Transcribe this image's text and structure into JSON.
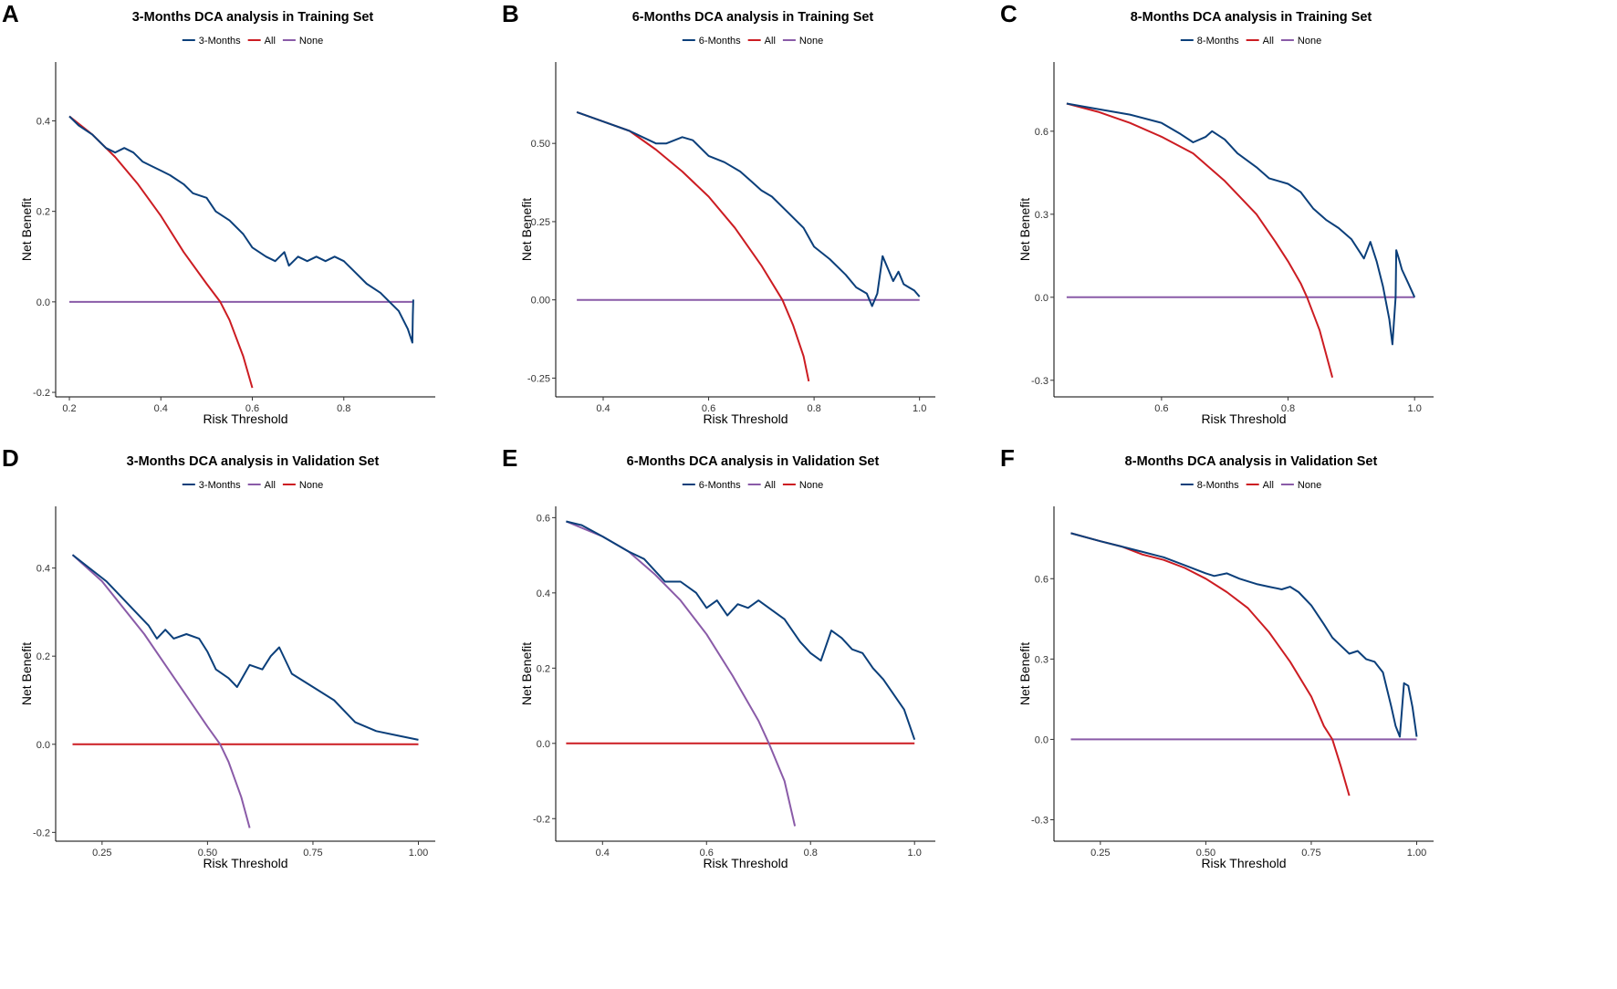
{
  "chart_data": [
    {
      "type": "line",
      "panel_label": "A",
      "title": "3-Months DCA analysis in Training Set",
      "xlabel": "Risk Threshold",
      "ylabel": "Net Benefit",
      "xlim": [
        0.17,
        1.0
      ],
      "ylim": [
        -0.21,
        0.53
      ],
      "xticks": [
        0.2,
        0.4,
        0.6,
        0.8
      ],
      "xtick_labels": [
        "0.2",
        "0.4",
        "0.6",
        "0.8"
      ],
      "yticks": [
        -0.2,
        0.0,
        0.2,
        0.4
      ],
      "ytick_labels": [
        "-0.2",
        "0.0",
        "0.2",
        "0.4"
      ],
      "series": [
        {
          "name": "3-Months",
          "color": "#0b3f7a",
          "x": [
            0.2,
            0.22,
            0.25,
            0.28,
            0.3,
            0.32,
            0.34,
            0.36,
            0.38,
            0.4,
            0.42,
            0.45,
            0.47,
            0.5,
            0.52,
            0.55,
            0.58,
            0.6,
            0.63,
            0.65,
            0.67,
            0.68,
            0.7,
            0.72,
            0.74,
            0.76,
            0.78,
            0.8,
            0.82,
            0.85,
            0.88,
            0.9,
            0.92,
            0.94,
            0.95,
            0.951,
            0.952
          ],
          "y": [
            0.41,
            0.39,
            0.37,
            0.34,
            0.33,
            0.34,
            0.33,
            0.31,
            0.3,
            0.29,
            0.28,
            0.26,
            0.24,
            0.23,
            0.2,
            0.18,
            0.15,
            0.12,
            0.1,
            0.09,
            0.11,
            0.08,
            0.1,
            0.09,
            0.1,
            0.09,
            0.1,
            0.09,
            0.07,
            0.04,
            0.02,
            0.0,
            -0.02,
            -0.06,
            -0.09,
            -0.03,
            0.005
          ]
        },
        {
          "name": "All",
          "color": "#cc1c22",
          "x": [
            0.2,
            0.25,
            0.3,
            0.35,
            0.4,
            0.45,
            0.5,
            0.53,
            0.55,
            0.58,
            0.6
          ],
          "y": [
            0.41,
            0.37,
            0.32,
            0.26,
            0.19,
            0.11,
            0.04,
            0.0,
            -0.04,
            -0.12,
            -0.19
          ]
        },
        {
          "name": "None",
          "color": "#8a5ba8",
          "x": [
            0.2,
            0.95
          ],
          "y": [
            0.0,
            0.0
          ]
        }
      ]
    },
    {
      "type": "line",
      "panel_label": "B",
      "title": "6-Months DCA analysis in Training Set",
      "xlabel": "Risk Threshold",
      "ylabel": "Net Benefit",
      "xlim": [
        0.31,
        1.03
      ],
      "ylim": [
        -0.31,
        0.76
      ],
      "xticks": [
        0.4,
        0.6,
        0.8,
        1.0
      ],
      "xtick_labels": [
        "0.4",
        "0.6",
        "0.8",
        "1.0"
      ],
      "yticks": [
        -0.25,
        0.0,
        0.25,
        0.5
      ],
      "ytick_labels": [
        "-0.25",
        "0.00",
        "0.25",
        "0.50"
      ],
      "series": [
        {
          "name": "6-Months",
          "color": "#0b3f7a",
          "x": [
            0.35,
            0.4,
            0.45,
            0.5,
            0.52,
            0.55,
            0.57,
            0.6,
            0.63,
            0.66,
            0.68,
            0.7,
            0.72,
            0.75,
            0.78,
            0.8,
            0.83,
            0.86,
            0.88,
            0.9,
            0.91,
            0.92,
            0.93,
            0.94,
            0.95,
            0.96,
            0.97,
            0.98,
            0.99,
            1.0
          ],
          "y": [
            0.6,
            0.57,
            0.54,
            0.5,
            0.5,
            0.52,
            0.51,
            0.46,
            0.44,
            0.41,
            0.38,
            0.35,
            0.33,
            0.28,
            0.23,
            0.17,
            0.13,
            0.08,
            0.04,
            0.02,
            -0.02,
            0.02,
            0.14,
            0.1,
            0.06,
            0.09,
            0.05,
            0.04,
            0.03,
            0.01
          ]
        },
        {
          "name": "All",
          "color": "#cc1c22",
          "x": [
            0.35,
            0.4,
            0.45,
            0.5,
            0.55,
            0.6,
            0.65,
            0.7,
            0.74,
            0.76,
            0.78,
            0.79
          ],
          "y": [
            0.6,
            0.57,
            0.54,
            0.48,
            0.41,
            0.33,
            0.23,
            0.11,
            0.0,
            -0.08,
            -0.18,
            -0.26
          ]
        },
        {
          "name": "None",
          "color": "#8a5ba8",
          "x": [
            0.35,
            1.0
          ],
          "y": [
            0.0,
            0.0
          ]
        }
      ]
    },
    {
      "type": "line",
      "panel_label": "C",
      "title": "8-Months DCA analysis in Training Set",
      "xlabel": "Risk Threshold",
      "ylabel": "Net Benefit",
      "xlim": [
        0.43,
        1.03
      ],
      "ylim": [
        -0.36,
        0.85
      ],
      "xticks": [
        0.6,
        0.8,
        1.0
      ],
      "xtick_labels": [
        "0.6",
        "0.8",
        "1.0"
      ],
      "yticks": [
        -0.3,
        0.0,
        0.3,
        0.6
      ],
      "ytick_labels": [
        "-0.3",
        "0.0",
        "0.3",
        "0.6"
      ],
      "series": [
        {
          "name": "8-Months",
          "color": "#0b3f7a",
          "x": [
            0.45,
            0.5,
            0.55,
            0.6,
            0.63,
            0.65,
            0.67,
            0.68,
            0.7,
            0.72,
            0.75,
            0.77,
            0.8,
            0.82,
            0.84,
            0.86,
            0.88,
            0.9,
            0.92,
            0.93,
            0.94,
            0.95,
            0.96,
            0.965,
            0.97,
            0.971,
            0.975,
            0.98,
            0.99,
            1.0
          ],
          "y": [
            0.7,
            0.68,
            0.66,
            0.63,
            0.59,
            0.56,
            0.58,
            0.6,
            0.57,
            0.52,
            0.47,
            0.43,
            0.41,
            0.38,
            0.32,
            0.28,
            0.25,
            0.21,
            0.14,
            0.2,
            0.13,
            0.04,
            -0.08,
            -0.17,
            0.0,
            0.17,
            0.14,
            0.1,
            0.05,
            0.0
          ]
        },
        {
          "name": "All",
          "color": "#cc1c22",
          "x": [
            0.45,
            0.5,
            0.55,
            0.6,
            0.65,
            0.7,
            0.75,
            0.78,
            0.8,
            0.82,
            0.83,
            0.85,
            0.87
          ],
          "y": [
            0.7,
            0.67,
            0.63,
            0.58,
            0.52,
            0.42,
            0.3,
            0.2,
            0.13,
            0.05,
            0.0,
            -0.12,
            -0.29
          ]
        },
        {
          "name": "None",
          "color": "#8a5ba8",
          "x": [
            0.45,
            1.0
          ],
          "y": [
            0.0,
            0.0
          ]
        }
      ]
    },
    {
      "type": "line",
      "panel_label": "D",
      "title": "3-Months DCA analysis in Validation Set",
      "xlabel": "Risk Threshold",
      "ylabel": "Net Benefit",
      "xlim": [
        0.14,
        1.04
      ],
      "ylim": [
        -0.22,
        0.54
      ],
      "xticks": [
        0.25,
        0.5,
        0.75,
        1.0
      ],
      "xtick_labels": [
        "0.25",
        "0.50",
        "0.75",
        "1.00"
      ],
      "yticks": [
        -0.2,
        0.0,
        0.2,
        0.4
      ],
      "ytick_labels": [
        "-0.2",
        "0.0",
        "0.2",
        "0.4"
      ],
      "series": [
        {
          "name": "3-Months",
          "color": "#0b3f7a",
          "x": [
            0.18,
            0.22,
            0.26,
            0.3,
            0.33,
            0.36,
            0.38,
            0.4,
            0.42,
            0.45,
            0.48,
            0.5,
            0.52,
            0.55,
            0.57,
            0.6,
            0.63,
            0.65,
            0.67,
            0.7,
            0.75,
            0.8,
            0.85,
            0.9,
            0.95,
            1.0
          ],
          "y": [
            0.43,
            0.4,
            0.37,
            0.33,
            0.3,
            0.27,
            0.24,
            0.26,
            0.24,
            0.25,
            0.24,
            0.21,
            0.17,
            0.15,
            0.13,
            0.18,
            0.17,
            0.2,
            0.22,
            0.16,
            0.13,
            0.1,
            0.05,
            0.03,
            0.02,
            0.01
          ]
        },
        {
          "name": "All",
          "color": "#8a5ba8",
          "x": [
            0.18,
            0.25,
            0.3,
            0.35,
            0.4,
            0.45,
            0.5,
            0.53,
            0.55,
            0.58,
            0.6
          ],
          "y": [
            0.43,
            0.37,
            0.31,
            0.25,
            0.18,
            0.11,
            0.04,
            0.0,
            -0.04,
            -0.12,
            -0.19
          ]
        },
        {
          "name": "None",
          "color": "#cc1c22",
          "x": [
            0.18,
            1.0
          ],
          "y": [
            0.0,
            0.0
          ]
        }
      ]
    },
    {
      "type": "line",
      "panel_label": "E",
      "title": "6-Months DCA analysis in Validation Set",
      "xlabel": "Risk Threshold",
      "ylabel": "Net Benefit",
      "xlim": [
        0.31,
        1.04
      ],
      "ylim": [
        -0.26,
        0.63
      ],
      "xticks": [
        0.4,
        0.6,
        0.8,
        1.0
      ],
      "xtick_labels": [
        "0.4",
        "0.6",
        "0.8",
        "1.0"
      ],
      "yticks": [
        -0.2,
        0.0,
        0.2,
        0.4,
        0.6
      ],
      "ytick_labels": [
        "-0.2",
        "0.0",
        "0.2",
        "0.4",
        "0.6"
      ],
      "series": [
        {
          "name": "6-Months",
          "color": "#0b3f7a",
          "x": [
            0.33,
            0.36,
            0.4,
            0.45,
            0.48,
            0.52,
            0.55,
            0.58,
            0.6,
            0.62,
            0.64,
            0.66,
            0.68,
            0.7,
            0.72,
            0.75,
            0.78,
            0.8,
            0.82,
            0.84,
            0.86,
            0.88,
            0.9,
            0.92,
            0.94,
            0.96,
            0.98,
            1.0
          ],
          "y": [
            0.59,
            0.58,
            0.55,
            0.51,
            0.49,
            0.43,
            0.43,
            0.4,
            0.36,
            0.38,
            0.34,
            0.37,
            0.36,
            0.38,
            0.36,
            0.33,
            0.27,
            0.24,
            0.22,
            0.3,
            0.28,
            0.25,
            0.24,
            0.2,
            0.17,
            0.13,
            0.09,
            0.01
          ]
        },
        {
          "name": "All",
          "color": "#8a5ba8",
          "x": [
            0.33,
            0.4,
            0.45,
            0.5,
            0.55,
            0.6,
            0.65,
            0.7,
            0.72,
            0.75,
            0.77
          ],
          "y": [
            0.59,
            0.55,
            0.51,
            0.45,
            0.38,
            0.29,
            0.18,
            0.06,
            0.0,
            -0.1,
            -0.22
          ]
        },
        {
          "name": "None",
          "color": "#cc1c22",
          "x": [
            0.33,
            1.0
          ],
          "y": [
            0.0,
            0.0
          ]
        }
      ]
    },
    {
      "type": "line",
      "panel_label": "F",
      "title": "8-Months DCA analysis in Validation Set",
      "xlabel": "Risk Threshold",
      "ylabel": "Net Benefit",
      "xlim": [
        0.14,
        1.04
      ],
      "ylim": [
        -0.38,
        0.87
      ],
      "xticks": [
        0.25,
        0.5,
        0.75,
        1.0
      ],
      "xtick_labels": [
        "0.25",
        "0.50",
        "0.75",
        "1.00"
      ],
      "yticks": [
        -0.3,
        0.0,
        0.3,
        0.6
      ],
      "ytick_labels": [
        "-0.3",
        "0.0",
        "0.3",
        "0.6"
      ],
      "series": [
        {
          "name": "8-Months",
          "color": "#0b3f7a",
          "x": [
            0.18,
            0.25,
            0.3,
            0.35,
            0.4,
            0.45,
            0.5,
            0.52,
            0.55,
            0.58,
            0.6,
            0.62,
            0.65,
            0.68,
            0.7,
            0.72,
            0.75,
            0.78,
            0.8,
            0.82,
            0.84,
            0.86,
            0.88,
            0.9,
            0.92,
            0.94,
            0.95,
            0.96,
            0.97,
            0.98,
            0.99,
            1.0
          ],
          "y": [
            0.77,
            0.74,
            0.72,
            0.7,
            0.68,
            0.65,
            0.62,
            0.61,
            0.62,
            0.6,
            0.59,
            0.58,
            0.57,
            0.56,
            0.57,
            0.55,
            0.5,
            0.43,
            0.38,
            0.35,
            0.32,
            0.33,
            0.3,
            0.29,
            0.25,
            0.12,
            0.05,
            0.01,
            0.21,
            0.2,
            0.12,
            0.01
          ]
        },
        {
          "name": "All",
          "color": "#cc1c22",
          "x": [
            0.18,
            0.25,
            0.3,
            0.35,
            0.4,
            0.45,
            0.5,
            0.55,
            0.6,
            0.65,
            0.7,
            0.75,
            0.78,
            0.8,
            0.82,
            0.84
          ],
          "y": [
            0.77,
            0.74,
            0.72,
            0.69,
            0.67,
            0.64,
            0.6,
            0.55,
            0.49,
            0.4,
            0.29,
            0.16,
            0.05,
            0.0,
            -0.1,
            -0.21
          ]
        },
        {
          "name": "None",
          "color": "#8a5ba8",
          "x": [
            0.18,
            1.0
          ],
          "y": [
            0.0,
            0.0
          ]
        }
      ]
    }
  ]
}
